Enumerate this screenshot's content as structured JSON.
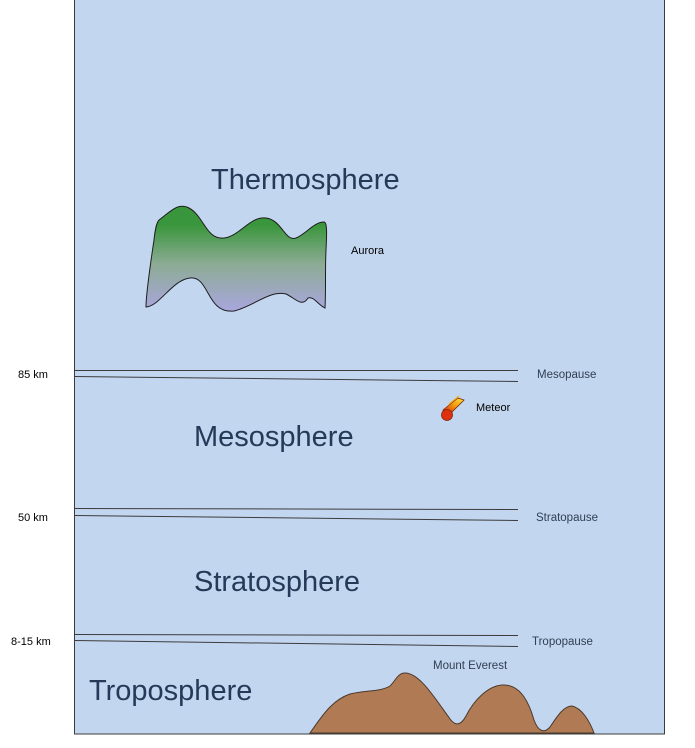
{
  "layers": {
    "thermosphere": "Thermosphere",
    "mesosphere": "Mesosphere",
    "stratosphere": "Stratosphere",
    "troposphere": "Troposphere"
  },
  "altitudes": {
    "mesopause": "85 km",
    "stratopause": "50 km",
    "tropopause": "8-15 km"
  },
  "boundaries": {
    "mesopause": "Mesopause",
    "stratopause": "Stratopause",
    "tropopause": "Tropopause"
  },
  "features": {
    "aurora": "Aurora",
    "meteor": "Meteor",
    "mountain": "Mount Everest"
  },
  "colors": {
    "sky": "#c3d6ef",
    "border": "#3c3c3c",
    "aurora_top": "#3a963c",
    "aurora_bottom": "#a9a6de",
    "mountain": "#b07a54",
    "layer_text": "#243a58"
  }
}
